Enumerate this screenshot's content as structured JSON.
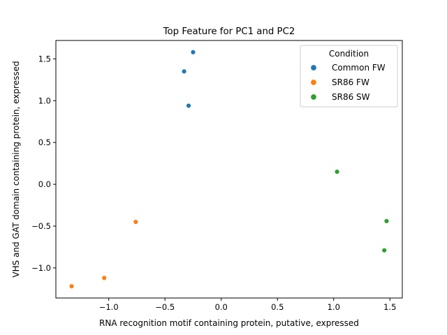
{
  "chart_data": {
    "type": "scatter",
    "title": "Top Feature for PC1 and PC2",
    "xlabel": "RNA recognition motif containing protein, putative, expressed",
    "ylabel": "VHS and GAT domain containing protein, expressed",
    "xlim": [
      -1.47,
      1.61
    ],
    "ylim": [
      -1.36,
      1.72
    ],
    "xticks": [
      -1.0,
      -0.5,
      0.0,
      0.5,
      1.0,
      1.5
    ],
    "xtick_labels": [
      "−1.0",
      "−0.5",
      "0.0",
      "0.5",
      "1.0",
      "1.5"
    ],
    "yticks": [
      -1.0,
      -0.5,
      0.0,
      0.5,
      1.0,
      1.5
    ],
    "ytick_labels": [
      "−1.0",
      "−0.5",
      "0.0",
      "0.5",
      "1.0",
      "1.5"
    ],
    "grid": false,
    "legend": {
      "title": "Condition",
      "position": "top-right"
    },
    "series": [
      {
        "name": "Common FW",
        "color": "#1f77b4",
        "points": [
          {
            "x": -0.25,
            "y": 1.58
          },
          {
            "x": -0.33,
            "y": 1.35
          },
          {
            "x": -0.29,
            "y": 0.94
          }
        ]
      },
      {
        "name": "SR86 FW",
        "color": "#ff7f0e",
        "points": [
          {
            "x": -0.76,
            "y": -0.45
          },
          {
            "x": -1.04,
            "y": -1.12
          },
          {
            "x": -1.33,
            "y": -1.22
          }
        ]
      },
      {
        "name": "SR86 SW",
        "color": "#2ca02c",
        "points": [
          {
            "x": 1.03,
            "y": 0.15
          },
          {
            "x": 1.47,
            "y": -0.44
          },
          {
            "x": 1.45,
            "y": -0.79
          }
        ]
      }
    ]
  }
}
